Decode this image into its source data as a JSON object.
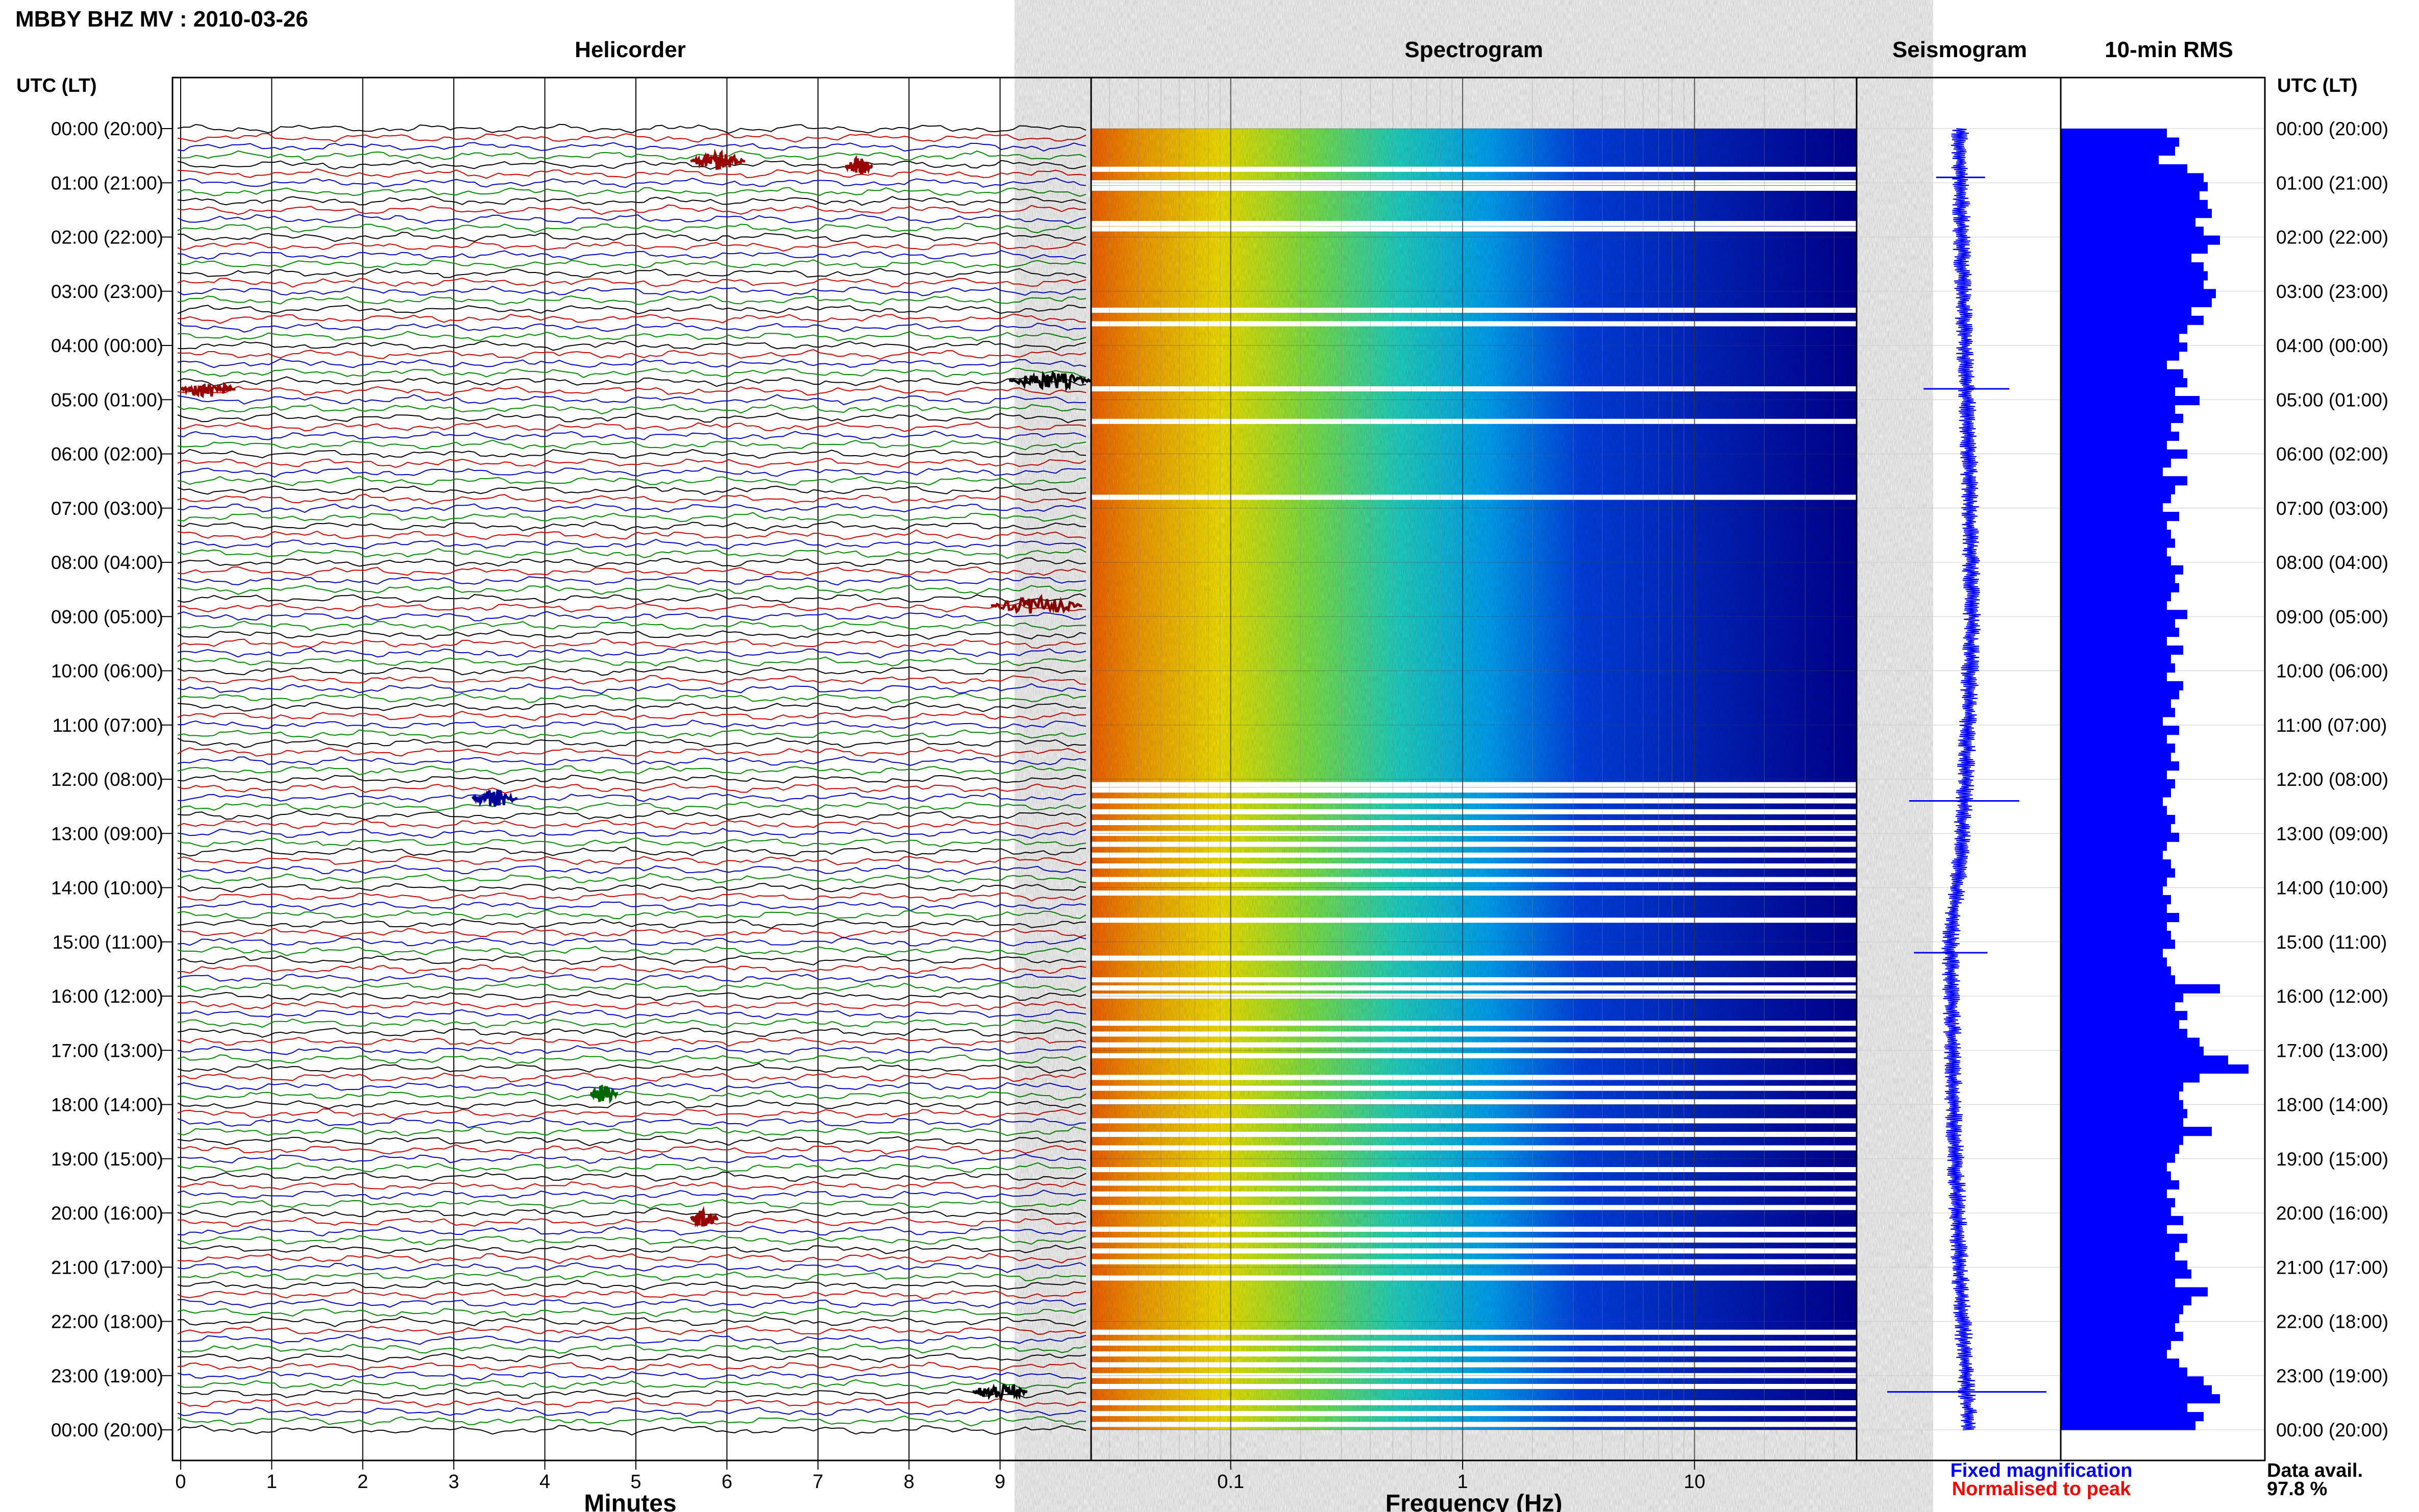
{
  "station_title": "MBBY BHZ MV : 2010-03-26",
  "utc_header": "UTC (LT)",
  "panels": {
    "helicorder": "Helicorder",
    "spectrogram": "Spectrogram",
    "seismogram": "Seismogram",
    "rms": "10-min RMS"
  },
  "hour_labels": [
    "00:00 (20:00)",
    "01:00 (21:00)",
    "02:00 (22:00)",
    "03:00 (23:00)",
    "04:00 (00:00)",
    "05:00 (01:00)",
    "06:00 (02:00)",
    "07:00 (03:00)",
    "08:00 (04:00)",
    "09:00 (05:00)",
    "10:00 (06:00)",
    "11:00 (07:00)",
    "12:00 (08:00)",
    "13:00 (09:00)",
    "14:00 (10:00)",
    "15:00 (11:00)",
    "16:00 (12:00)",
    "17:00 (13:00)",
    "18:00 (14:00)",
    "19:00 (15:00)",
    "20:00 (16:00)",
    "21:00 (17:00)",
    "22:00 (18:00)",
    "23:00 (19:00)",
    "00:00 (20:00)"
  ],
  "legend": {
    "fixed": "Fixed magnification",
    "fixed_color": "#0000ff",
    "normalised": "Normalised to peak",
    "normalised_color": "#ff0000"
  },
  "data_avail": {
    "label": "Data avail.",
    "value": "97.8 %"
  },
  "chart_data": [
    {
      "type": "line",
      "name": "helicorder",
      "title": "Helicorder",
      "xlabel": "Minutes",
      "xlim": [
        0,
        10
      ],
      "x_ticks": [
        "0",
        "1",
        "2",
        "3",
        "4",
        "5",
        "6",
        "7",
        "8",
        "9"
      ],
      "x_tick_values": [
        0,
        1,
        2,
        3,
        4,
        5,
        6,
        7,
        8,
        9
      ],
      "ylabel": "UTC (LT)",
      "ylim_hours": [
        0,
        24
      ],
      "row_minutes": 10,
      "rows": 145,
      "trace_colors": [
        "#000000",
        "#cc0000",
        "#0000cc",
        "#008800"
      ],
      "grid": true,
      "events": [
        {
          "hour": 0.6,
          "start_min": 5.6,
          "end_min": 6.2,
          "color": "#990000"
        },
        {
          "hour": 0.7,
          "start_min": 7.3,
          "end_min": 7.6,
          "color": "#990000"
        },
        {
          "hour": 4.8,
          "start_min": 0.0,
          "end_min": 0.6,
          "color": "#990000"
        },
        {
          "hour": 4.65,
          "start_min": 9.1,
          "end_min": 10.0,
          "color": "#000000"
        },
        {
          "hour": 8.8,
          "start_min": 8.9,
          "end_min": 9.9,
          "color": "#990000"
        },
        {
          "hour": 12.35,
          "start_min": 3.2,
          "end_min": 3.7,
          "color": "#000099"
        },
        {
          "hour": 17.8,
          "start_min": 4.5,
          "end_min": 4.8,
          "color": "#006600"
        },
        {
          "hour": 20.1,
          "start_min": 5.6,
          "end_min": 5.9,
          "color": "#990000"
        },
        {
          "hour": 23.3,
          "start_min": 8.7,
          "end_min": 9.3,
          "color": "#000000"
        }
      ]
    },
    {
      "type": "heatmap",
      "name": "spectrogram",
      "title": "Spectrogram",
      "xlabel": "Frequency (Hz)",
      "x_scale": "log",
      "xlim": [
        0.025,
        50
      ],
      "x_ticks": [
        "0.1",
        "1",
        "10"
      ],
      "x_tick_values": [
        0.1,
        1,
        10
      ],
      "ylim_hours": [
        0,
        24
      ],
      "colormap": [
        "#ff6600",
        "#ffaa00",
        "#ffee00",
        "#88ee44",
        "#22ddcc",
        "#00aaff",
        "#0044ee",
        "#000099"
      ],
      "gap_hours": [
        0.75,
        1.0,
        1.1,
        1.75,
        1.85,
        3.35,
        3.6,
        4.8,
        5.4,
        6.8,
        12.1,
        12.2,
        12.4,
        12.6,
        12.8,
        13.0,
        13.2,
        13.4,
        13.6,
        13.85,
        14.1,
        14.6,
        15.3,
        15.7,
        15.85,
        16.0,
        16.5,
        16.7,
        16.9,
        17.1,
        17.5,
        17.7,
        17.95,
        18.3,
        18.55,
        18.8,
        19.2,
        19.45,
        19.65,
        19.9,
        20.3,
        20.5,
        20.7,
        20.9,
        21.2,
        22.2,
        22.4,
        22.6,
        22.8,
        23.0,
        23.2,
        23.5,
        23.7,
        23.9
      ]
    },
    {
      "type": "line",
      "name": "seismogram",
      "title": "Seismogram",
      "ylim_hours": [
        0,
        24
      ],
      "color": "#0000ff",
      "drift": [
        [
          0,
          0.0
        ],
        [
          3,
          0.05
        ],
        [
          6,
          0.15
        ],
        [
          9,
          0.2
        ],
        [
          12,
          0.1
        ],
        [
          13.5,
          0.0
        ],
        [
          15,
          -0.15
        ],
        [
          18,
          -0.1
        ],
        [
          21,
          0.0
        ],
        [
          24,
          0.15
        ]
      ],
      "spikes": [
        {
          "hour": 0.9,
          "size": 0.8
        },
        {
          "hour": 4.8,
          "size": 1.4
        },
        {
          "hour": 12.4,
          "size": 1.8
        },
        {
          "hour": 15.2,
          "size": 1.2
        },
        {
          "hour": 23.3,
          "size": 2.6
        }
      ]
    },
    {
      "type": "bar",
      "name": "rms",
      "title": "10-min RMS",
      "orientation": "horizontal",
      "color": "#0000ff",
      "bin_minutes": 10,
      "ylim_hours": [
        0,
        24
      ],
      "values": [
        0.52,
        0.58,
        0.56,
        0.48,
        0.62,
        0.7,
        0.72,
        0.68,
        0.72,
        0.74,
        0.66,
        0.7,
        0.78,
        0.72,
        0.64,
        0.7,
        0.72,
        0.7,
        0.76,
        0.74,
        0.64,
        0.7,
        0.62,
        0.58,
        0.62,
        0.58,
        0.52,
        0.6,
        0.62,
        0.56,
        0.68,
        0.56,
        0.6,
        0.54,
        0.58,
        0.52,
        0.62,
        0.54,
        0.5,
        0.62,
        0.56,
        0.54,
        0.5,
        0.58,
        0.52,
        0.54,
        0.56,
        0.52,
        0.54,
        0.6,
        0.56,
        0.58,
        0.54,
        0.52,
        0.62,
        0.56,
        0.58,
        0.52,
        0.6,
        0.54,
        0.56,
        0.52,
        0.6,
        0.58,
        0.54,
        0.56,
        0.5,
        0.58,
        0.52,
        0.56,
        0.54,
        0.58,
        0.52,
        0.56,
        0.54,
        0.5,
        0.52,
        0.56,
        0.54,
        0.58,
        0.52,
        0.5,
        0.54,
        0.56,
        0.52,
        0.5,
        0.54,
        0.52,
        0.58,
        0.52,
        0.54,
        0.56,
        0.5,
        0.52,
        0.54,
        0.56,
        0.78,
        0.6,
        0.56,
        0.62,
        0.58,
        0.62,
        0.68,
        0.7,
        0.82,
        0.92,
        0.68,
        0.6,
        0.58,
        0.6,
        0.62,
        0.6,
        0.74,
        0.6,
        0.58,
        0.56,
        0.52,
        0.54,
        0.58,
        0.52,
        0.56,
        0.54,
        0.6,
        0.52,
        0.62,
        0.58,
        0.56,
        0.62,
        0.64,
        0.56,
        0.72,
        0.64,
        0.6,
        0.58,
        0.56,
        0.6,
        0.54,
        0.52,
        0.58,
        0.62,
        0.7,
        0.74,
        0.78,
        0.62,
        0.7,
        0.66
      ]
    }
  ]
}
